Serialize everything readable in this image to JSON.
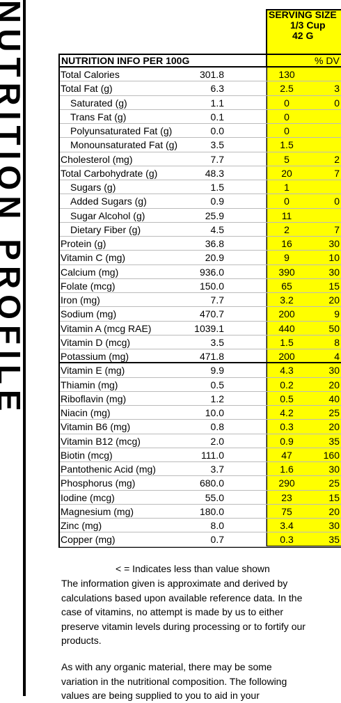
{
  "side_title": "NUTRITION PROFILE",
  "serving": {
    "label": "SERVING SIZE",
    "size": "1/3 Cup",
    "grams": "42 G"
  },
  "header": {
    "title": "NUTRITION INFO PER 100G",
    "dv": "% DV"
  },
  "rows": [
    {
      "name": "Total Calories",
      "per100": "301.8",
      "serving": "130",
      "dv": "",
      "indent": false
    },
    {
      "name": "Total Fat (g)",
      "per100": "6.3",
      "serving": "2.5",
      "dv": "3",
      "indent": false
    },
    {
      "name": "Saturated (g)",
      "per100": "1.1",
      "serving": "0",
      "dv": "0",
      "indent": true
    },
    {
      "name": "Trans Fat (g)",
      "per100": "0.1",
      "serving": "0",
      "dv": "",
      "indent": true
    },
    {
      "name": "Polyunsaturated Fat (g)",
      "per100": "0.0",
      "serving": "0",
      "dv": "",
      "indent": true
    },
    {
      "name": "Monounsaturated Fat (g)",
      "per100": "3.5",
      "serving": "1.5",
      "dv": "",
      "indent": true
    },
    {
      "name": "Cholesterol (mg)",
      "per100": "7.7",
      "serving": "5",
      "dv": "2",
      "indent": false
    },
    {
      "name": "Total Carbohydrate (g)",
      "per100": "48.3",
      "serving": "20",
      "dv": "7",
      "indent": false
    },
    {
      "name": "Sugars (g)",
      "per100": "1.5",
      "serving": "1",
      "dv": "",
      "indent": true
    },
    {
      "name": "Added Sugars (g)",
      "per100": "0.9",
      "serving": "0",
      "dv": "0",
      "indent": true
    },
    {
      "name": "Sugar Alcohol (g)",
      "per100": "25.9",
      "serving": "11",
      "dv": "",
      "indent": true
    },
    {
      "name": "Dietary Fiber (g)",
      "per100": "4.5",
      "serving": "2",
      "dv": "7",
      "indent": true
    },
    {
      "name": "Protein (g)",
      "per100": "36.8",
      "serving": "16",
      "dv": "30",
      "indent": false
    },
    {
      "name": "Vitamin C (mg)",
      "per100": "20.9",
      "serving": "9",
      "dv": "10",
      "indent": false
    },
    {
      "name": "Calcium (mg)",
      "per100": "936.0",
      "serving": "390",
      "dv": "30",
      "indent": false
    },
    {
      "name": "Folate (mcg)",
      "per100": "150.0",
      "serving": "65",
      "dv": "15",
      "indent": false
    },
    {
      "name": "Iron (mg)",
      "per100": "7.7",
      "serving": "3.2",
      "dv": "20",
      "indent": false
    },
    {
      "name": "Sodium (mg)",
      "per100": "470.7",
      "serving": "200",
      "dv": "9",
      "indent": false
    },
    {
      "name": "Vitamin A (mcg RAE)",
      "per100": "1039.1",
      "serving": "440",
      "dv": "50",
      "indent": false
    },
    {
      "name": "Vitamin D (mcg)",
      "per100": "3.5",
      "serving": "1.5",
      "dv": "8",
      "indent": false
    },
    {
      "name": "Potassium (mg)",
      "per100": "471.8",
      "serving": "200",
      "dv": "4",
      "indent": false,
      "thick": true
    },
    {
      "name": "Vitamin E (mg)",
      "per100": "9.9",
      "serving": "4.3",
      "dv": "30",
      "indent": false
    },
    {
      "name": "Thiamin (mg)",
      "per100": "0.5",
      "serving": "0.2",
      "dv": "20",
      "indent": false
    },
    {
      "name": "Riboflavin (mg)",
      "per100": "1.2",
      "serving": "0.5",
      "dv": "40",
      "indent": false
    },
    {
      "name": "Niacin (mg)",
      "per100": "10.0",
      "serving": "4.2",
      "dv": "25",
      "indent": false
    },
    {
      "name": "Vitamin B6 (mg)",
      "per100": "0.8",
      "serving": "0.3",
      "dv": "20",
      "indent": false
    },
    {
      "name": "Vitamin B12 (mcg)",
      "per100": "2.0",
      "serving": "0.9",
      "dv": "35",
      "indent": false
    },
    {
      "name": "Biotin (mcg)",
      "per100": "111.0",
      "serving": "47",
      "dv": "160",
      "indent": false
    },
    {
      "name": "Pantothenic Acid (mg)",
      "per100": "3.7",
      "serving": "1.6",
      "dv": "30",
      "indent": false
    },
    {
      "name": "Phosphorus (mg)",
      "per100": "680.0",
      "serving": "290",
      "dv": "25",
      "indent": false
    },
    {
      "name": "Iodine (mcg)",
      "per100": "55.0",
      "serving": "23",
      "dv": "15",
      "indent": false
    },
    {
      "name": "Magnesium (mg)",
      "per100": "180.0",
      "serving": "75",
      "dv": "20",
      "indent": false
    },
    {
      "name": "Zinc (mg)",
      "per100": "8.0",
      "serving": "3.4",
      "dv": "30",
      "indent": false
    },
    {
      "name": "Copper (mg)",
      "per100": "0.7",
      "serving": "0.3",
      "dv": "35",
      "indent": false
    }
  ],
  "footnote": "< = Indicates less than value shown",
  "paragraph1": [
    "The information given is approximate and derived by",
    "calculations based upon available reference data.  In the",
    "case of vitamins, no attempt is made by us to either",
    "preserve vitamin levels during processing or to fortify our",
    "products."
  ],
  "paragraph2": [
    "As with any organic material, there may be some",
    "variation in the nutritional composition.  The following",
    "values are being supplied to you to aid in your"
  ]
}
